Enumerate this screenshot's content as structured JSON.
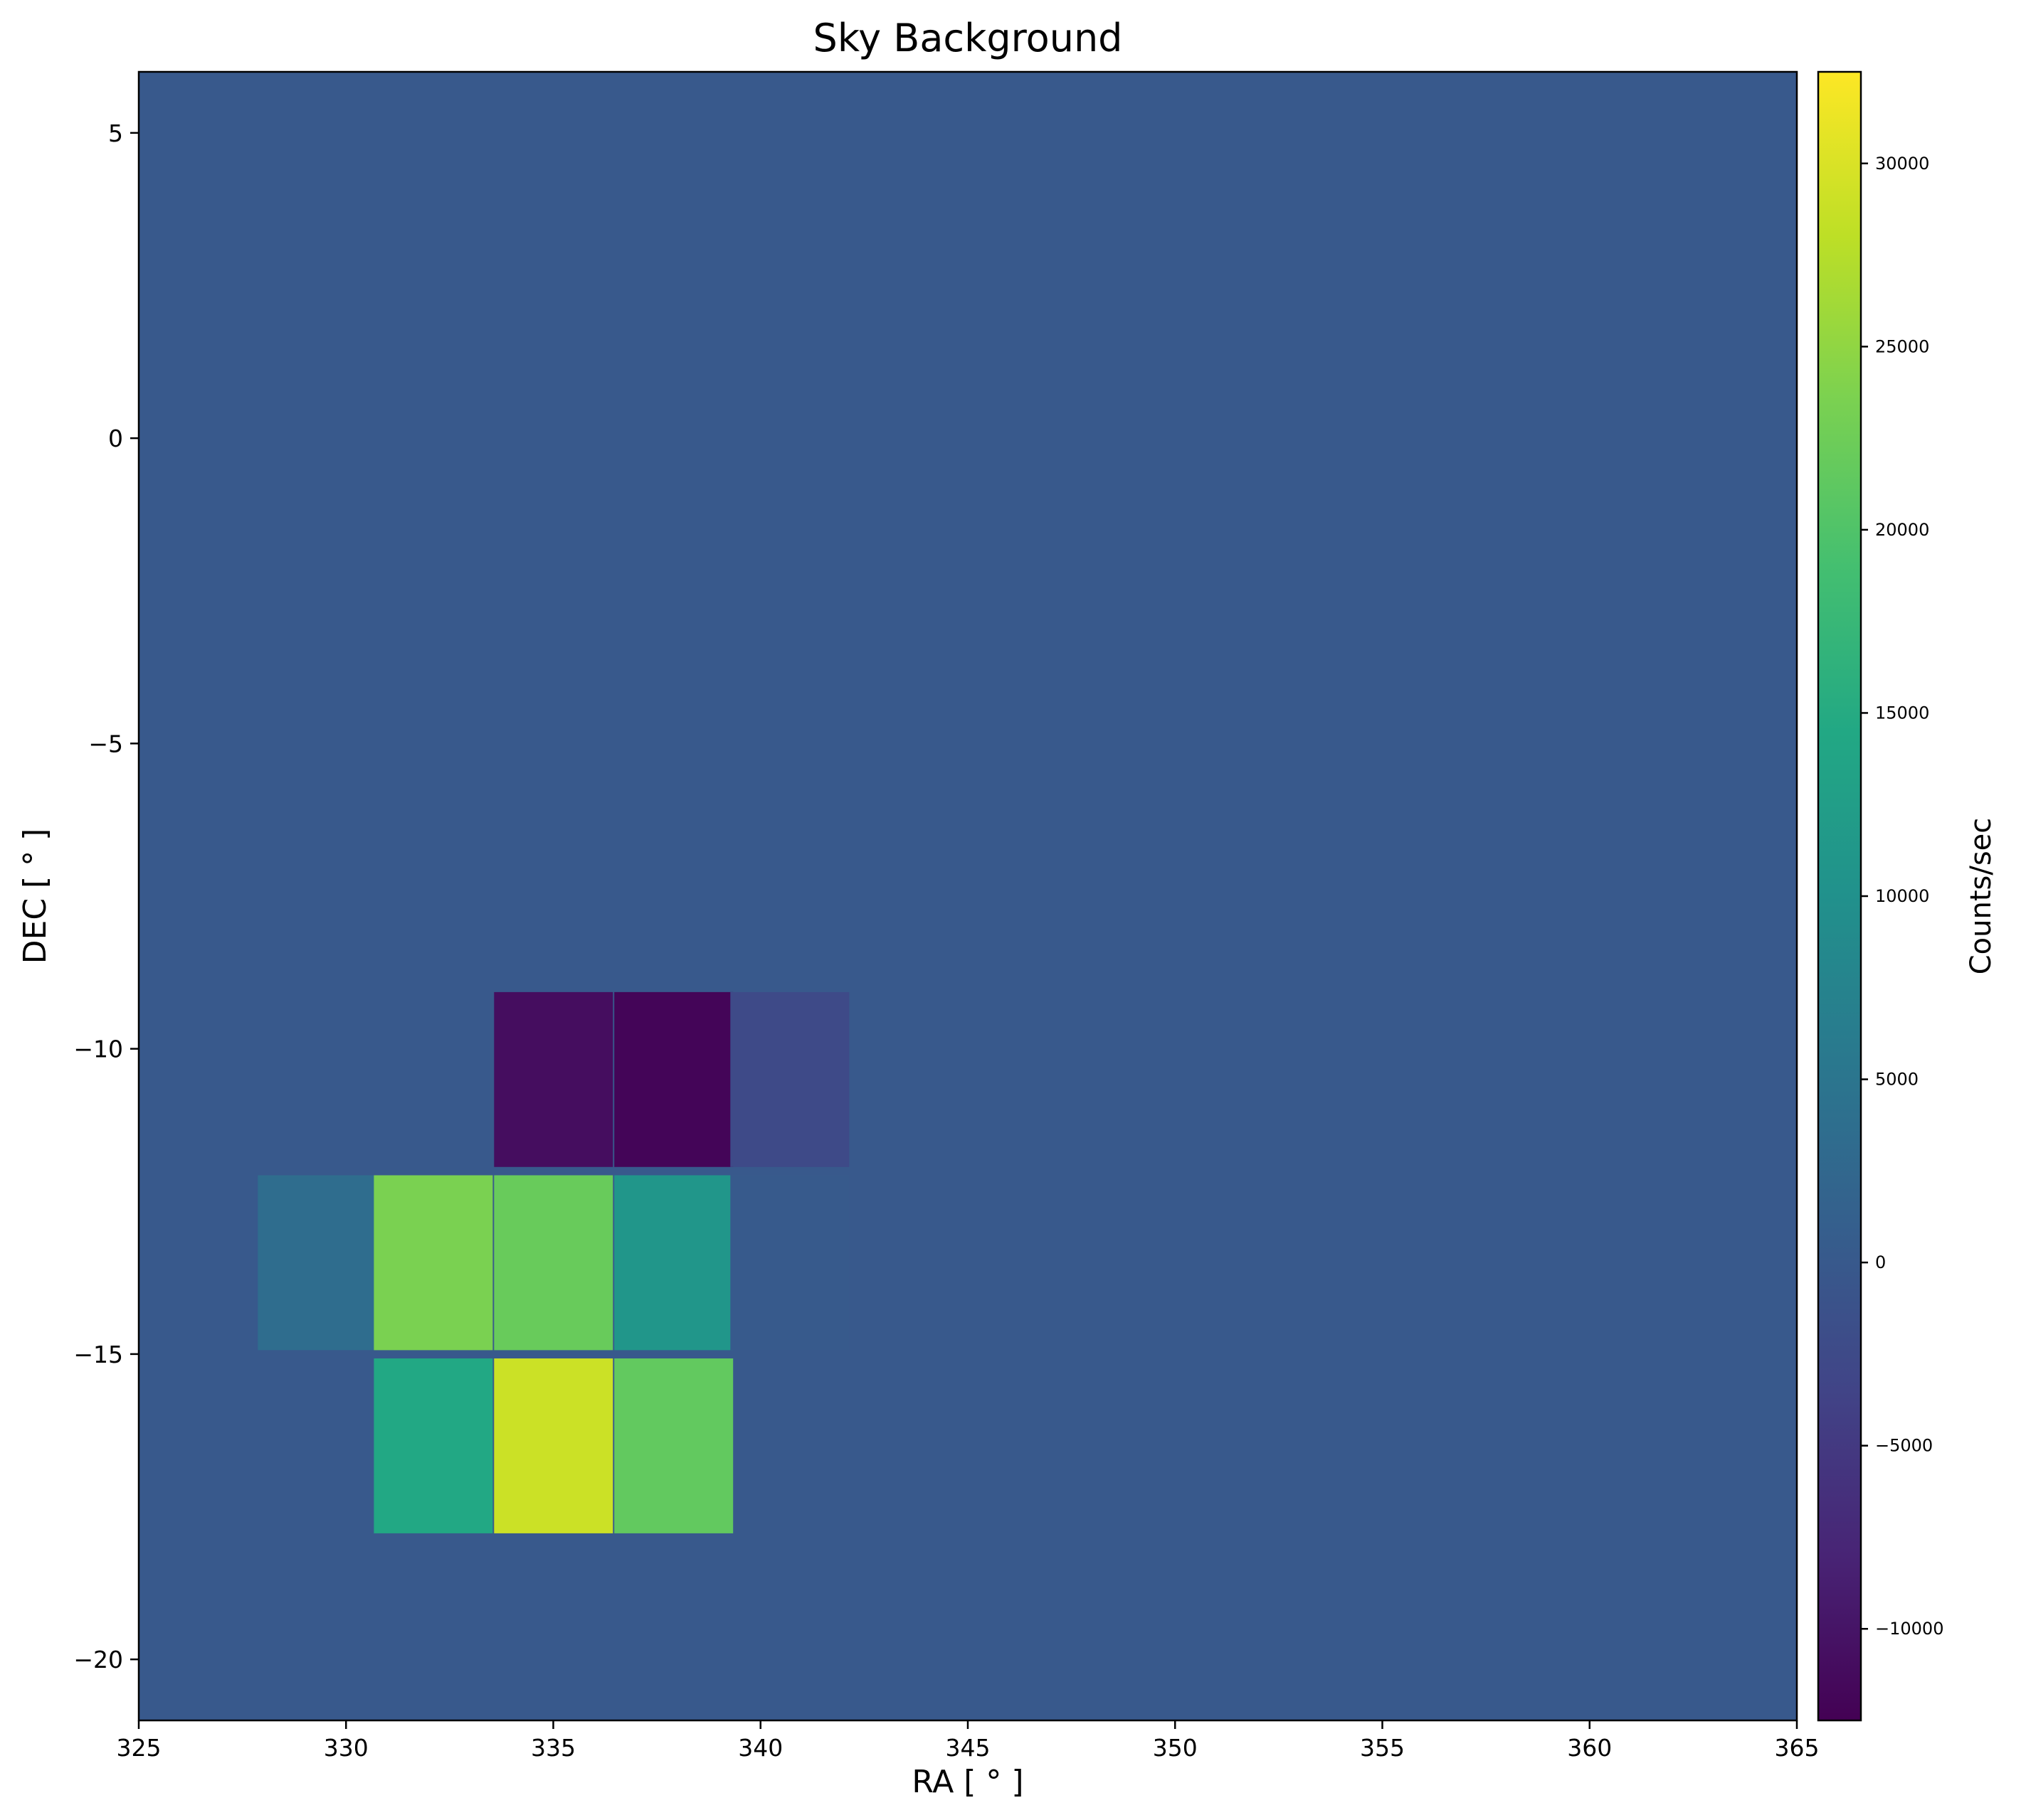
{
  "chart_data": {
    "type": "heatmap",
    "title": "Sky Background",
    "xlabel": "RA [$^\\circ$]",
    "xlabel_display": "RA [ ° ]",
    "ylabel_display": "DEC [ ° ]",
    "colorbar_label": "Counts/sec",
    "colormap": "viridis",
    "xlim": [
      325,
      365
    ],
    "ylim": [
      -21,
      6
    ],
    "xticks": [
      325,
      330,
      335,
      340,
      345,
      350,
      355,
      360,
      365
    ],
    "xtick_labels": [
      "325",
      "330",
      "335",
      "340",
      "345",
      "350",
      "355",
      "360",
      "365"
    ],
    "yticks": [
      5,
      0,
      -5,
      -10,
      -15,
      -20
    ],
    "ytick_labels": [
      "5",
      "0",
      "−5",
      "−10",
      "−15",
      "−20"
    ],
    "clim": [
      -12500,
      32500
    ],
    "cbar_ticks": [
      30000,
      25000,
      20000,
      15000,
      10000,
      5000,
      0,
      -5000,
      -10000
    ],
    "cbar_tick_labels": [
      "30000",
      "25000",
      "20000",
      "15000",
      "10000",
      "5000",
      "0",
      "−5000",
      "−10000"
    ],
    "background_value": 0,
    "cell_size": 2.857,
    "cells": [
      {
        "ra": 335.0,
        "dec": -10.5,
        "value": -11000
      },
      {
        "ra": 337.9,
        "dec": -10.5,
        "value": -12000
      },
      {
        "ra": 340.7,
        "dec": -10.5,
        "value": -2500
      },
      {
        "ra": 329.3,
        "dec": -13.5,
        "value": 3500
      },
      {
        "ra": 332.1,
        "dec": -13.5,
        "value": 23500
      },
      {
        "ra": 335.0,
        "dec": -13.5,
        "value": 22000
      },
      {
        "ra": 337.9,
        "dec": -13.5,
        "value": 11000
      },
      {
        "ra": 340.7,
        "dec": -13.5,
        "value": 200
      },
      {
        "ra": 332.1,
        "dec": -16.5,
        "value": 14500
      },
      {
        "ra": 335.0,
        "dec": -16.5,
        "value": 29000
      },
      {
        "ra": 337.9,
        "dec": -16.5,
        "value": 21500
      }
    ]
  }
}
